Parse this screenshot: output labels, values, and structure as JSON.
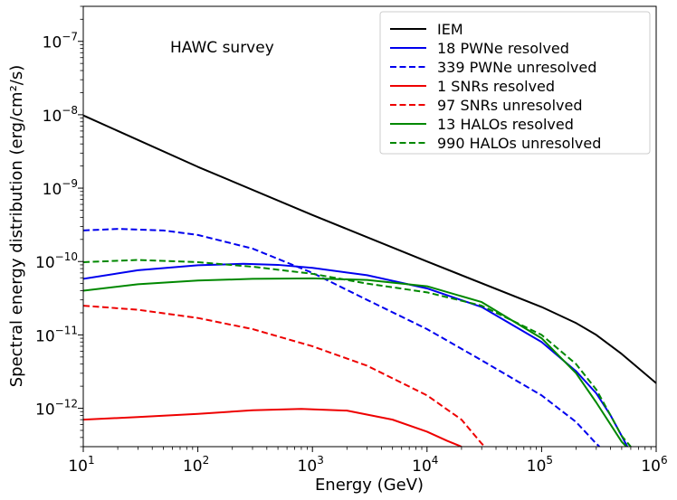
{
  "chart_data": {
    "type": "line",
    "title": "",
    "annotation": "HAWC survey",
    "xlabel": "Energy (GeV)",
    "ylabel": "Spectral energy distribution (erg/cm²/s)",
    "xscale": "log",
    "yscale": "log",
    "xlim": [
      10,
      1000000
    ],
    "ylim": [
      3e-13,
      3e-07
    ],
    "legend_position": "top-right",
    "x_ticks": [
      {
        "value": 10,
        "base": "10",
        "exp": "1"
      },
      {
        "value": 100,
        "base": "10",
        "exp": "2"
      },
      {
        "value": 1000,
        "base": "10",
        "exp": "3"
      },
      {
        "value": 10000,
        "base": "10",
        "exp": "4"
      },
      {
        "value": 100000,
        "base": "10",
        "exp": "5"
      },
      {
        "value": 1000000,
        "base": "10",
        "exp": "6"
      }
    ],
    "y_ticks": [
      {
        "value": 1e-12,
        "base": "10",
        "exp": "−12"
      },
      {
        "value": 1e-11,
        "base": "10",
        "exp": "−11"
      },
      {
        "value": 1e-10,
        "base": "10",
        "exp": "−10"
      },
      {
        "value": 1e-09,
        "base": "10",
        "exp": "−9"
      },
      {
        "value": 1e-08,
        "base": "10",
        "exp": "−8"
      },
      {
        "value": 1e-07,
        "base": "10",
        "exp": "−7"
      }
    ],
    "series": [
      {
        "name": "IEM",
        "color": "#000000",
        "dash": "solid",
        "x": [
          10,
          100,
          1000,
          10000,
          100000,
          200000,
          300000,
          500000,
          1000000
        ],
        "y": [
          9.8e-09,
          1.95e-09,
          4.3e-10,
          1e-10,
          2.4e-11,
          1.45e-11,
          1e-11,
          5.5e-12,
          2.2e-12
        ]
      },
      {
        "name": "18 PWNe resolved",
        "color": "#0000ee",
        "dash": "solid",
        "x": [
          10,
          30,
          100,
          250,
          500,
          1000,
          3000,
          10000,
          30000,
          100000,
          200000,
          300000,
          400000,
          500000,
          560000
        ],
        "y": [
          5.8e-11,
          7.6e-11,
          8.9e-11,
          9.3e-11,
          9e-11,
          8.2e-11,
          6.5e-11,
          4.3e-11,
          2.4e-11,
          8e-12,
          3.2e-12,
          1.6e-12,
          8e-13,
          4.2e-13,
          3e-13
        ]
      },
      {
        "name": "339 PWNe unresolved",
        "color": "#0000ee",
        "dash": "dashed",
        "x": [
          10,
          20,
          50,
          100,
          300,
          1000,
          3000,
          10000,
          30000,
          100000,
          200000,
          300000,
          320000
        ],
        "y": [
          2.65e-10,
          2.78e-10,
          2.65e-10,
          2.3e-10,
          1.5e-10,
          7e-11,
          3e-11,
          1.2e-11,
          4.5e-12,
          1.5e-12,
          6.5e-13,
          3.3e-13,
          3e-13
        ]
      },
      {
        "name": "1 SNRs resolved",
        "color": "#ee0000",
        "dash": "solid",
        "x": [
          10,
          30,
          100,
          300,
          800,
          2000,
          5000,
          10000,
          15000,
          20000
        ],
        "y": [
          7e-13,
          7.6e-13,
          8.4e-13,
          9.4e-13,
          9.8e-13,
          9.3e-13,
          7e-13,
          4.8e-13,
          3.6e-13,
          3e-13
        ]
      },
      {
        "name": "97 SNRs unresolved",
        "color": "#ee0000",
        "dash": "dashed",
        "x": [
          10,
          30,
          100,
          300,
          1000,
          3000,
          10000,
          20000,
          30000,
          32000
        ],
        "y": [
          2.5e-11,
          2.2e-11,
          1.7e-11,
          1.2e-11,
          7e-12,
          3.8e-12,
          1.5e-12,
          7e-13,
          3.3e-13,
          3e-13
        ]
      },
      {
        "name": "13 HALOs resolved",
        "color": "#008800",
        "dash": "solid",
        "x": [
          10,
          30,
          100,
          300,
          1000,
          3000,
          10000,
          30000,
          100000,
          200000,
          300000,
          400000,
          500000,
          550000
        ],
        "y": [
          4e-11,
          4.9e-11,
          5.5e-11,
          5.8e-11,
          5.9e-11,
          5.6e-11,
          4.6e-11,
          2.8e-11,
          9e-12,
          3e-12,
          1.2e-12,
          6e-13,
          3.5e-13,
          3e-13
        ]
      },
      {
        "name": "990 HALOs unresolved",
        "color": "#008800",
        "dash": "dashed",
        "x": [
          10,
          30,
          100,
          300,
          1000,
          3000,
          10000,
          30000,
          100000,
          200000,
          300000,
          400000,
          500000,
          600000
        ],
        "y": [
          9.8e-11,
          1.05e-10,
          9.8e-11,
          8.5e-11,
          6.8e-11,
          5e-11,
          3.8e-11,
          2.5e-11,
          1e-11,
          4e-12,
          1.8e-12,
          8e-13,
          4.2e-13,
          3e-13
        ]
      }
    ]
  }
}
